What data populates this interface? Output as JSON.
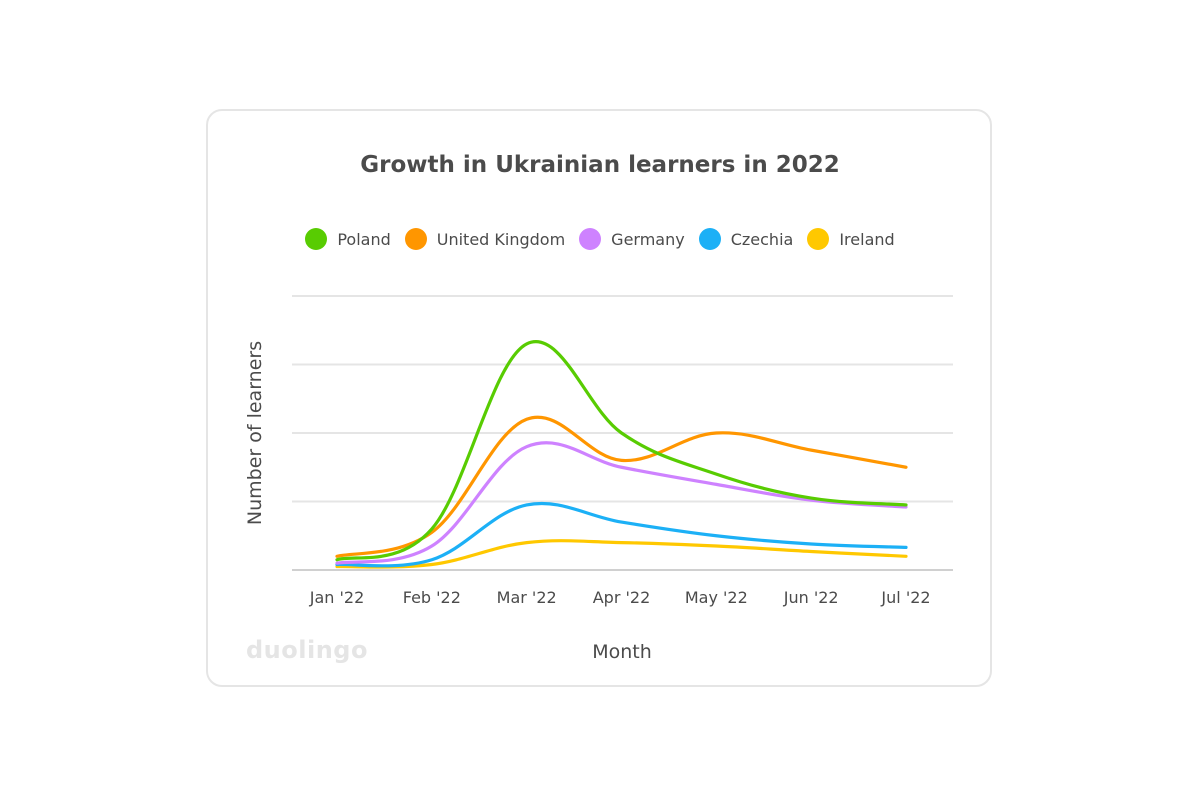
{
  "brand": "duolingo",
  "chart_data": {
    "type": "line",
    "title": "Growth in Ukrainian learners in 2022",
    "xlabel": "Month",
    "ylabel": "Number of learners",
    "categories": [
      "Jan '22",
      "Feb '22",
      "Mar '22",
      "Apr '22",
      "May '22",
      "Jun '22",
      "Jul '22"
    ],
    "ylim": [
      0,
      4
    ],
    "grid": true,
    "y_tick_labels_shown": false,
    "legend_position": "top",
    "series": [
      {
        "name": "Poland",
        "color": "#58cc02",
        "values": [
          0.15,
          0.6,
          3.3,
          2.0,
          1.4,
          1.05,
          0.95
        ]
      },
      {
        "name": "United Kingdom",
        "color": "#ff9600",
        "values": [
          0.2,
          0.55,
          2.2,
          1.6,
          2.0,
          1.75,
          1.5
        ]
      },
      {
        "name": "Germany",
        "color": "#ce82ff",
        "values": [
          0.1,
          0.35,
          1.8,
          1.5,
          1.25,
          1.02,
          0.92
        ]
      },
      {
        "name": "Czechia",
        "color": "#1cb0f6",
        "values": [
          0.08,
          0.15,
          0.95,
          0.7,
          0.5,
          0.38,
          0.33
        ]
      },
      {
        "name": "Ireland",
        "color": "#ffc800",
        "values": [
          0.05,
          0.08,
          0.4,
          0.4,
          0.35,
          0.27,
          0.2
        ]
      }
    ]
  }
}
